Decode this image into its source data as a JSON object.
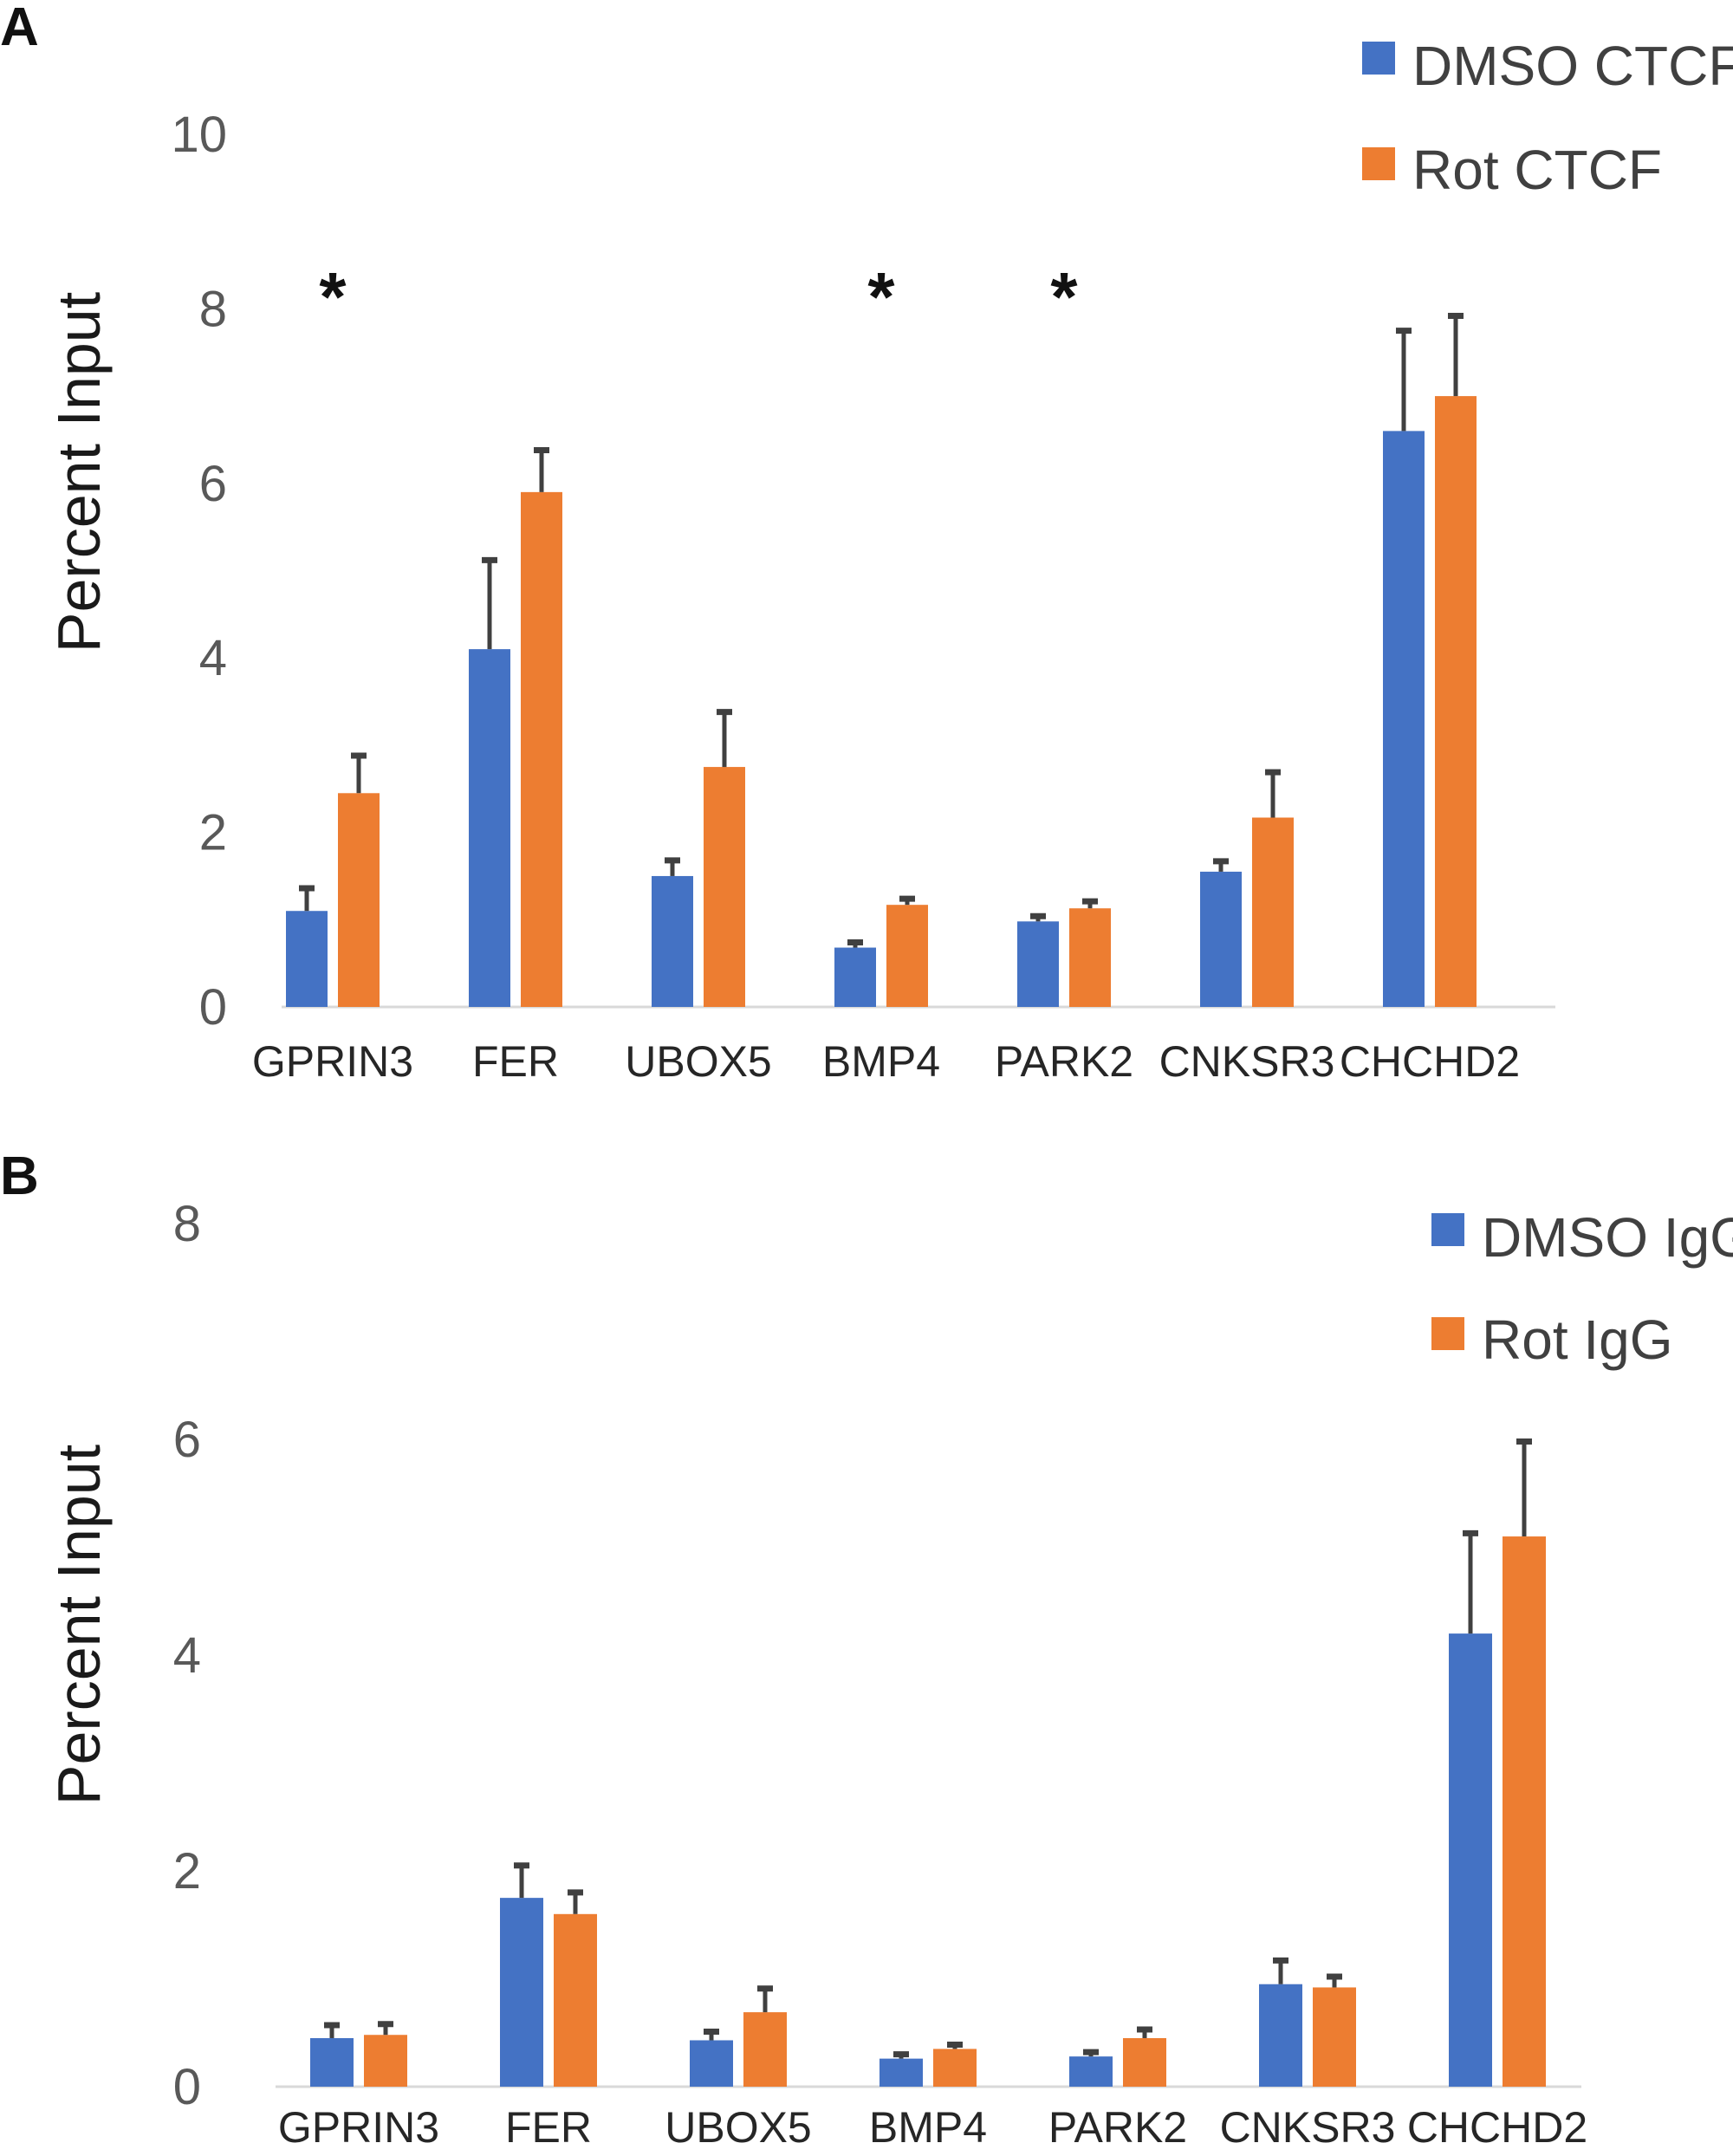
{
  "panels": {
    "a": {
      "label": "A"
    },
    "b": {
      "label": "B"
    }
  },
  "colors": {
    "blue": "#4472C4",
    "orange": "#ED7D31",
    "error": "#404040",
    "axis": "#d9d9d9"
  },
  "chart_data": [
    {
      "type": "bar",
      "panel": "A",
      "title": "",
      "xlabel": "",
      "ylabel": "Percent Input",
      "ylim": [
        0,
        10
      ],
      "yticks": [
        "0",
        "2",
        "4",
        "6",
        "8",
        "10"
      ],
      "categories": [
        "GPRIN3",
        "FER",
        "UBOX5",
        "BMP4",
        "PARK2",
        "CNKSR3",
        "CHCHD2"
      ],
      "series": [
        {
          "name": "DMSO CTCF",
          "color": "#4472C4",
          "values": [
            1.1,
            4.1,
            1.5,
            0.68,
            0.98,
            1.55,
            6.6
          ],
          "errors": [
            0.26,
            1.02,
            0.18,
            0.06,
            0.06,
            0.12,
            1.15
          ]
        },
        {
          "name": "Rot CTCF",
          "color": "#ED7D31",
          "values": [
            2.45,
            5.9,
            2.75,
            1.17,
            1.13,
            2.17,
            7.0
          ],
          "errors": [
            0.43,
            0.48,
            0.63,
            0.07,
            0.08,
            0.52,
            0.92
          ]
        }
      ],
      "annotations": [
        {
          "category": "GPRIN3",
          "text": "*"
        },
        {
          "category": "BMP4",
          "text": "*"
        },
        {
          "category": "PARK2",
          "text": "*"
        }
      ],
      "legend": "top-right"
    },
    {
      "type": "bar",
      "panel": "B",
      "title": "",
      "xlabel": "",
      "ylabel": "Percent Input",
      "ylim": [
        0,
        8
      ],
      "yticks": [
        "0",
        "2",
        "4",
        "6",
        "8"
      ],
      "categories": [
        "GPRIN3",
        "FER",
        "UBOX5",
        "BMP4",
        "PARK2",
        "CNKSR3",
        "CHCHD2"
      ],
      "series": [
        {
          "name": "DMSO IgG",
          "color": "#4472C4",
          "values": [
            0.45,
            1.75,
            0.43,
            0.26,
            0.28,
            0.95,
            4.2
          ],
          "errors": [
            0.12,
            0.3,
            0.08,
            0.04,
            0.04,
            0.22,
            0.93
          ]
        },
        {
          "name": "Rot IgG",
          "color": "#ED7D31",
          "values": [
            0.48,
            1.6,
            0.69,
            0.35,
            0.45,
            0.92,
            5.1
          ],
          "errors": [
            0.1,
            0.2,
            0.22,
            0.04,
            0.08,
            0.1,
            0.88
          ]
        }
      ],
      "annotations": [],
      "legend": "top-right"
    }
  ]
}
